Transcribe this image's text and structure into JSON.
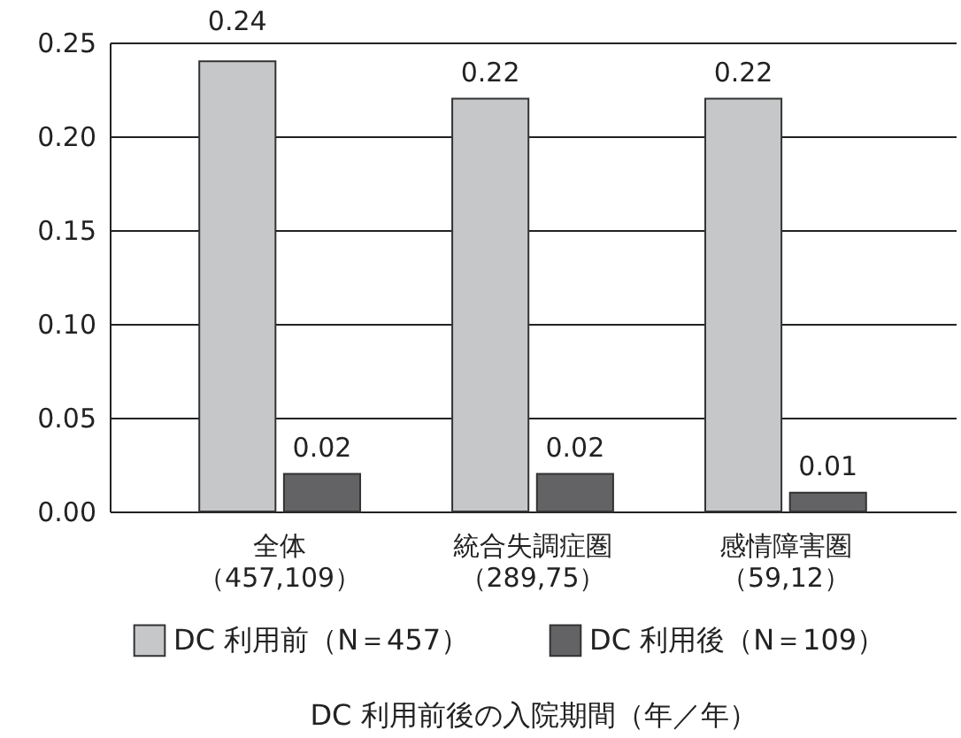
{
  "chart_data": {
    "type": "bar",
    "categories": [
      "全体（457,109）",
      "統合失調症圏（289,75）",
      "感情障害圏（59,12）"
    ],
    "series": [
      {
        "name": "DC 利用前（N＝457）",
        "color": "#c6c7c9",
        "values": [
          0.24,
          0.22,
          0.22
        ]
      },
      {
        "name": "DC 利用後（N＝109）",
        "color": "#636365",
        "values": [
          0.02,
          0.02,
          0.01
        ]
      }
    ],
    "xlabel": "DC 利用前後の入院期間（年／年）",
    "ylim": [
      0,
      0.25
    ],
    "yticks": [
      {
        "value": 0,
        "label": "0.00"
      },
      0.05,
      {
        "value": 0.1,
        "label": "0.10"
      },
      0.15,
      {
        "value": 0.2,
        "label": "0.20"
      },
      0.25
    ],
    "grid": "y",
    "legend": "bottom",
    "data_labels": true
  }
}
